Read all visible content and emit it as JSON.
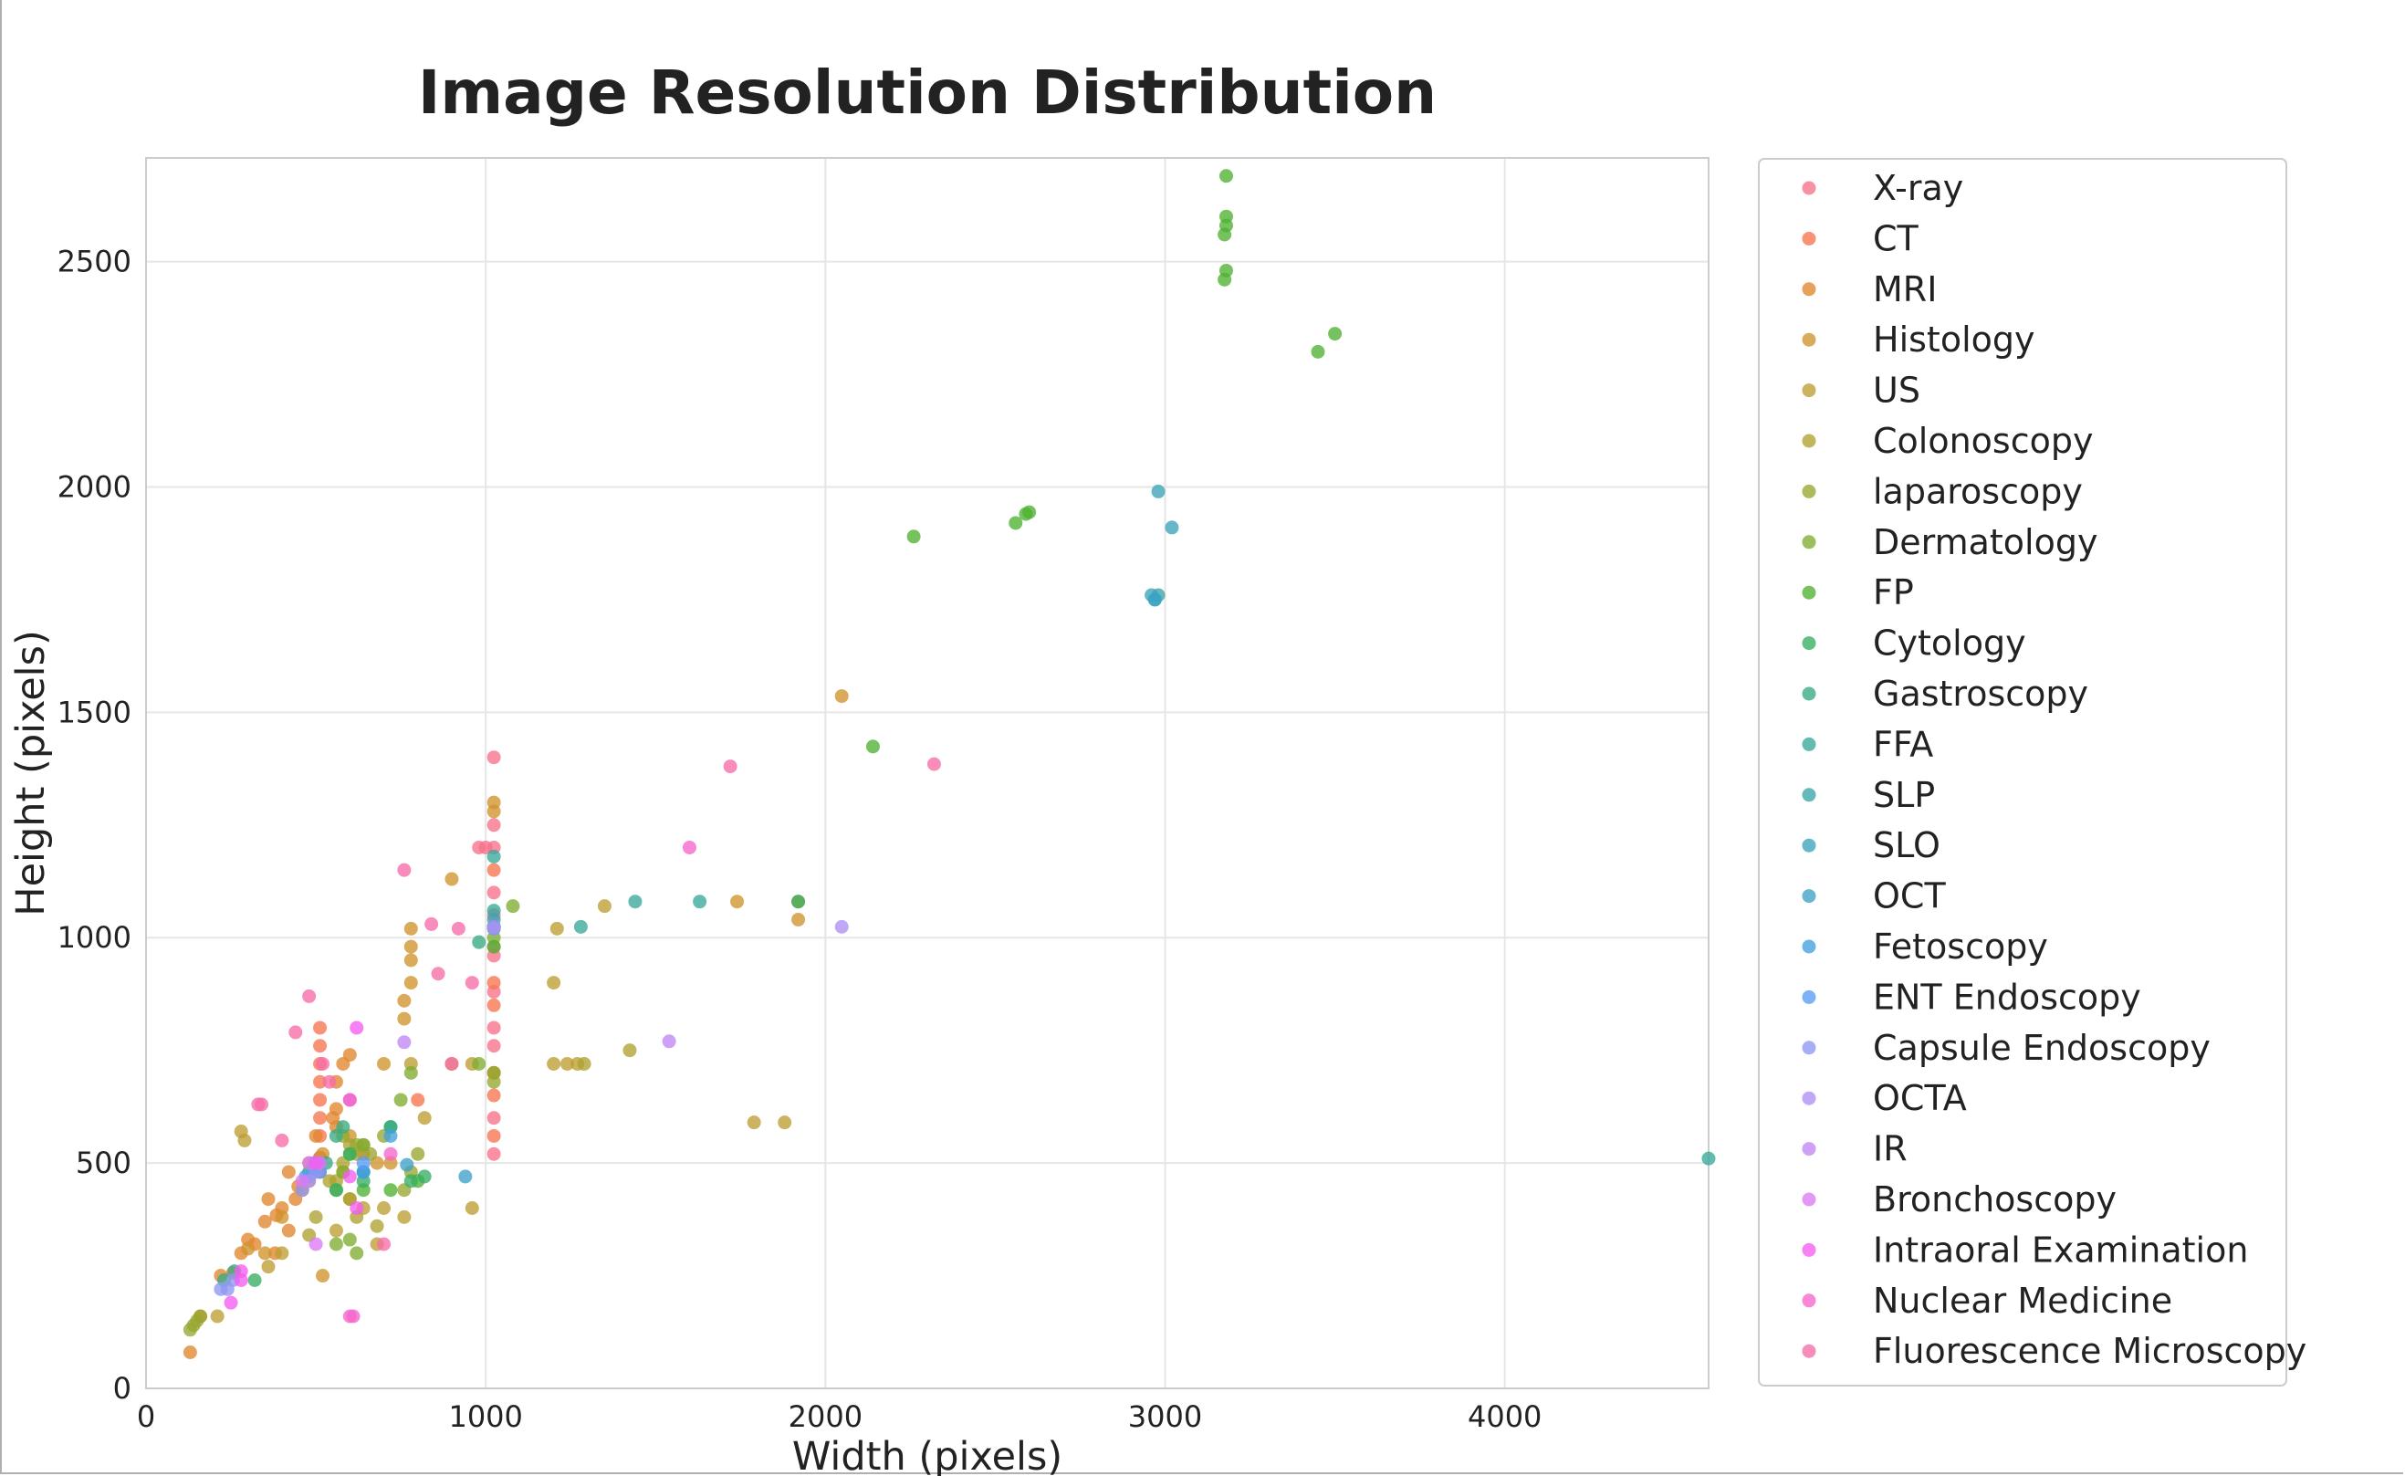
{
  "chart_data": {
    "type": "scatter",
    "title": "Image Resolution Distribution",
    "xlabel": "Width (pixels)",
    "ylabel": "Height (pixels)",
    "xlim": [
      0,
      4600
    ],
    "ylim": [
      0,
      2730
    ],
    "xticks": [
      0,
      1000,
      2000,
      3000,
      4000
    ],
    "yticks": [
      0,
      500,
      1000,
      1500,
      2000,
      2500
    ],
    "grid": true,
    "legend_position": "outside-right",
    "series": [
      {
        "name": "X-ray",
        "color": "#f77189",
        "points": [
          [
            1024,
            1024
          ],
          [
            1024,
            1200
          ],
          [
            1024,
            1250
          ],
          [
            1024,
            1100
          ],
          [
            1024,
            960
          ],
          [
            1024,
            880
          ],
          [
            1024,
            800
          ],
          [
            1024,
            700
          ],
          [
            1024,
            600
          ],
          [
            1024,
            520
          ],
          [
            980,
            1200
          ],
          [
            1000,
            1200
          ],
          [
            1024,
            1400
          ],
          [
            1024,
            1050
          ],
          [
            1024,
            980
          ],
          [
            1024,
            760
          ]
        ]
      },
      {
        "name": "CT",
        "color": "#f7754f",
        "points": [
          [
            512,
            512
          ],
          [
            512,
            640
          ],
          [
            512,
            720
          ],
          [
            512,
            760
          ],
          [
            512,
            800
          ],
          [
            512,
            512
          ],
          [
            512,
            480
          ],
          [
            512,
            560
          ],
          [
            512,
            600
          ],
          [
            512,
            680
          ],
          [
            1024,
            650
          ],
          [
            1024,
            560
          ],
          [
            800,
            640
          ],
          [
            1024,
            850
          ],
          [
            1024,
            900
          ],
          [
            1024,
            1150
          ]
        ]
      },
      {
        "name": "MRI",
        "color": "#e2872f",
        "points": [
          [
            256,
            256
          ],
          [
            320,
            320
          ],
          [
            384,
            384
          ],
          [
            448,
            448
          ],
          [
            400,
            400
          ],
          [
            360,
            420
          ],
          [
            420,
            480
          ],
          [
            480,
            500
          ],
          [
            300,
            330
          ],
          [
            350,
            370
          ],
          [
            440,
            420
          ],
          [
            500,
            560
          ],
          [
            560,
            620
          ],
          [
            600,
            640
          ],
          [
            640,
            520
          ],
          [
            220,
            250
          ],
          [
            160,
            160
          ],
          [
            130,
            80
          ],
          [
            280,
            300
          ],
          [
            380,
            300
          ],
          [
            420,
            350
          ],
          [
            560,
            680
          ],
          [
            580,
            720
          ],
          [
            600,
            740
          ],
          [
            560,
            580
          ],
          [
            550,
            600
          ]
        ]
      },
      {
        "name": "Histology",
        "color": "#d1942e",
        "points": [
          [
            2048,
            1536
          ],
          [
            1920,
            1080
          ],
          [
            1920,
            1040
          ],
          [
            1740,
            1080
          ],
          [
            1024,
            1024
          ],
          [
            1024,
            1300
          ],
          [
            1024,
            1280
          ],
          [
            900,
            1130
          ],
          [
            780,
            1020
          ],
          [
            780,
            980
          ],
          [
            780,
            950
          ],
          [
            780,
            900
          ],
          [
            760,
            860
          ],
          [
            760,
            820
          ],
          [
            700,
            720
          ],
          [
            720,
            500
          ],
          [
            680,
            500
          ],
          [
            600,
            560
          ],
          [
            520,
            520
          ],
          [
            580,
            480
          ],
          [
            480,
            460
          ],
          [
            460,
            440
          ],
          [
            400,
            380
          ],
          [
            350,
            300
          ],
          [
            300,
            310
          ],
          [
            520,
            250
          ]
        ]
      },
      {
        "name": "US",
        "color": "#bd9d32",
        "points": [
          [
            1270,
            720
          ],
          [
            1240,
            720
          ],
          [
            1200,
            720
          ],
          [
            1350,
            1070
          ],
          [
            1210,
            1020
          ],
          [
            1200,
            900
          ],
          [
            1790,
            590
          ],
          [
            1880,
            590
          ],
          [
            900,
            720
          ],
          [
            960,
            720
          ],
          [
            640,
            480
          ],
          [
            600,
            420
          ],
          [
            640,
            400
          ],
          [
            700,
            400
          ],
          [
            680,
            320
          ],
          [
            760,
            380
          ],
          [
            560,
            350
          ],
          [
            280,
            570
          ],
          [
            290,
            550
          ],
          [
            400,
            300
          ],
          [
            210,
            160
          ],
          [
            360,
            270
          ],
          [
            960,
            400
          ],
          [
            820,
            600
          ],
          [
            780,
            720
          ]
        ]
      },
      {
        "name": "Colonoscopy",
        "color": "#ada230",
        "points": [
          [
            1424,
            750
          ],
          [
            1290,
            720
          ],
          [
            1024,
            700
          ],
          [
            600,
            540
          ],
          [
            620,
            520
          ],
          [
            640,
            540
          ],
          [
            580,
            500
          ],
          [
            560,
            460
          ],
          [
            540,
            460
          ],
          [
            500,
            380
          ],
          [
            480,
            340
          ],
          [
            600,
            420
          ],
          [
            620,
            380
          ],
          [
            680,
            360
          ]
        ]
      },
      {
        "name": "laparoscopy",
        "color": "#98a631",
        "points": [
          [
            1024,
            1024
          ],
          [
            1024,
            700
          ],
          [
            1024,
            680
          ],
          [
            800,
            520
          ],
          [
            780,
            480
          ],
          [
            760,
            440
          ],
          [
            700,
            560
          ],
          [
            660,
            520
          ],
          [
            620,
            540
          ],
          [
            580,
            560
          ],
          [
            160,
            160
          ],
          [
            150,
            150
          ],
          [
            140,
            140
          ],
          [
            130,
            130
          ]
        ]
      },
      {
        "name": "Dermatology",
        "color": "#7fad31",
        "points": [
          [
            1080,
            1070
          ],
          [
            1024,
            1000
          ],
          [
            980,
            720
          ],
          [
            640,
            540
          ],
          [
            600,
            520
          ],
          [
            580,
            480
          ],
          [
            560,
            440
          ],
          [
            600,
            330
          ],
          [
            620,
            300
          ],
          [
            560,
            320
          ],
          [
            780,
            700
          ],
          [
            750,
            640
          ]
        ]
      },
      {
        "name": "FP",
        "color": "#4fb132",
        "points": [
          [
            3180,
            2690
          ],
          [
            3180,
            2600
          ],
          [
            3180,
            2580
          ],
          [
            3175,
            2560
          ],
          [
            3180,
            2480
          ],
          [
            3175,
            2460
          ],
          [
            3500,
            2340
          ],
          [
            3450,
            2300
          ],
          [
            2600,
            1944
          ],
          [
            2590,
            1940
          ],
          [
            2560,
            1920
          ],
          [
            2260,
            1890
          ],
          [
            2140,
            1424
          ],
          [
            1024,
            980
          ],
          [
            800,
            460
          ],
          [
            720,
            440
          ],
          [
            640,
            440
          ]
        ]
      },
      {
        "name": "Cytology",
        "color": "#36ae62",
        "points": [
          [
            1920,
            1080
          ],
          [
            1024,
            1024
          ],
          [
            720,
            580
          ],
          [
            600,
            520
          ],
          [
            480,
            480
          ],
          [
            560,
            440
          ],
          [
            640,
            460
          ],
          [
            780,
            460
          ],
          [
            820,
            470
          ],
          [
            320,
            240
          ]
        ]
      },
      {
        "name": "Gastroscopy",
        "color": "#37ab82",
        "points": [
          [
            1024,
            1024
          ],
          [
            980,
            990
          ],
          [
            720,
            580
          ],
          [
            580,
            580
          ],
          [
            560,
            560
          ],
          [
            530,
            500
          ],
          [
            260,
            260
          ],
          [
            230,
            240
          ]
        ]
      },
      {
        "name": "FFA",
        "color": "#38a898",
        "points": [
          [
            1440,
            1080
          ],
          [
            1280,
            1024
          ],
          [
            1630,
            1080
          ],
          [
            4600,
            510
          ],
          [
            1024,
            1180
          ],
          [
            1024,
            1060
          ]
        ]
      },
      {
        "name": "SLP",
        "color": "#3aa5a8",
        "points": [
          [
            2980,
            1760
          ],
          [
            2970,
            1750
          ],
          [
            1024,
            1024
          ]
        ]
      },
      {
        "name": "SLO",
        "color": "#3ba3b7",
        "points": [
          [
            2980,
            1990
          ],
          [
            3020,
            1910
          ],
          [
            2960,
            1760
          ],
          [
            1024,
            1040
          ]
        ]
      },
      {
        "name": "OCT",
        "color": "#3da1c8",
        "points": [
          [
            768,
            496
          ],
          [
            640,
            480
          ],
          [
            512,
            500
          ],
          [
            496,
            500
          ],
          [
            940,
            470
          ],
          [
            1024,
            1020
          ],
          [
            2970,
            1750
          ]
        ]
      },
      {
        "name": "Fetoscopy",
        "color": "#41a0e0",
        "points": [
          [
            640,
            480
          ],
          [
            720,
            560
          ],
          [
            500,
            490
          ],
          [
            470,
            470
          ]
        ]
      },
      {
        "name": "ENT Endoscopy",
        "color": "#5a9cf4",
        "points": [
          [
            512,
            480
          ],
          [
            500,
            500
          ],
          [
            480,
            470
          ],
          [
            640,
            500
          ]
        ]
      },
      {
        "name": "Capsule Endoscopy",
        "color": "#8f97f4",
        "points": [
          [
            256,
            240
          ],
          [
            240,
            220
          ],
          [
            220,
            220
          ],
          [
            460,
            440
          ],
          [
            1024,
            1020
          ],
          [
            500,
            480
          ]
        ]
      },
      {
        "name": "OCTA",
        "color": "#ad91f4",
        "points": [
          [
            2048,
            1024
          ],
          [
            1024,
            1024
          ],
          [
            480,
            460
          ]
        ]
      },
      {
        "name": "IR",
        "color": "#c286f4",
        "points": [
          [
            1540,
            770
          ],
          [
            760,
            768
          ]
        ]
      },
      {
        "name": "Bronchoscopy",
        "color": "#dc7af4",
        "points": [
          [
            512,
            500
          ],
          [
            480,
            500
          ],
          [
            500,
            320
          ],
          [
            460,
            460
          ]
        ]
      },
      {
        "name": "Intraoral Examination",
        "color": "#f55cf1",
        "points": [
          [
            620,
            800
          ],
          [
            600,
            640
          ],
          [
            280,
            260
          ],
          [
            280,
            240
          ],
          [
            250,
            190
          ],
          [
            500,
            500
          ],
          [
            600,
            470
          ],
          [
            620,
            400
          ]
        ]
      },
      {
        "name": "Nuclear Medicine",
        "color": "#f565cc",
        "points": [
          [
            1600,
            1200
          ],
          [
            600,
            160
          ],
          [
            610,
            160
          ],
          [
            720,
            520
          ]
        ]
      },
      {
        "name": "Fluorescence Microscopy",
        "color": "#f66da8",
        "points": [
          [
            1720,
            1380
          ],
          [
            2320,
            1385
          ],
          [
            760,
            1150
          ],
          [
            480,
            870
          ],
          [
            440,
            790
          ],
          [
            340,
            630
          ],
          [
            330,
            630
          ],
          [
            900,
            720
          ],
          [
            860,
            920
          ],
          [
            840,
            1030
          ],
          [
            920,
            1020
          ],
          [
            960,
            900
          ],
          [
            700,
            320
          ],
          [
            520,
            720
          ],
          [
            540,
            680
          ],
          [
            400,
            550
          ]
        ]
      }
    ]
  }
}
